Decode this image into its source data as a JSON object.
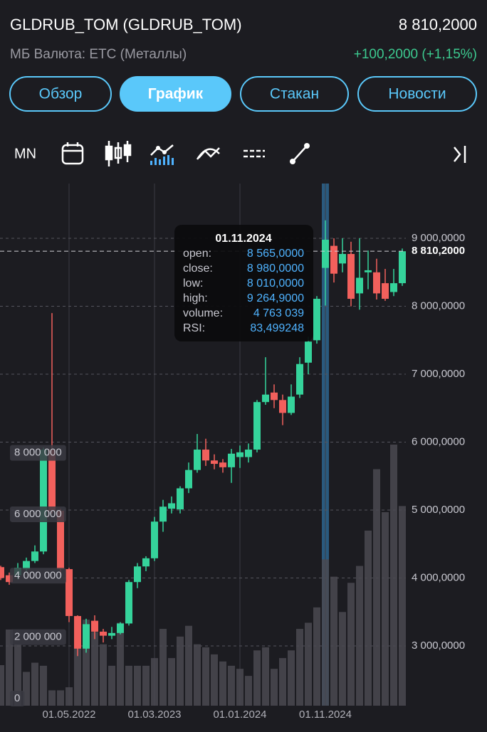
{
  "header": {
    "title": "GLDRUB_TOM (GLDRUB_TOM)",
    "price": "8 810,2000",
    "subtitle": "МБ Валюта: ETC (Металлы)",
    "change": "+100,2000 (+1,15%)"
  },
  "tabs": [
    "Обзор",
    "График",
    "Стакан",
    "Новости"
  ],
  "active_tab": "График",
  "toolbar": {
    "period": "MN"
  },
  "chart_data": {
    "type": "candlestick",
    "categories": [
      null,
      null,
      null,
      null,
      null,
      null,
      null,
      null,
      "01.05.2022",
      null,
      null,
      null,
      null,
      null,
      null,
      null,
      null,
      null,
      "01.03.2023",
      null,
      null,
      null,
      null,
      null,
      null,
      null,
      null,
      null,
      "01.01.2024",
      null,
      null,
      null,
      null,
      null,
      null,
      null,
      null,
      null,
      "01.11.2024",
      null,
      null,
      null,
      null,
      null,
      null,
      null,
      null,
      null
    ],
    "open": [
      4160000,
      4040000,
      4040000,
      4130000,
      4250000,
      4390000,
      5890000,
      4990000,
      4130000,
      3440000,
      2960000,
      3370000,
      3210000,
      3150000,
      3190000,
      3330000,
      3940000,
      4170000,
      4290000,
      4830000,
      5020000,
      5010000,
      5320000,
      5590000,
      5890000,
      5730000,
      5700000,
      5630000,
      5780000,
      5780000,
      5890000,
      6590000,
      6730000,
      6620000,
      6430000,
      6700000,
      7170000,
      7500000,
      8565000,
      8890000,
      8630000,
      8770000,
      8190000,
      8500000,
      8500000,
      8340000,
      8210000,
      8340000
    ],
    "high": [
      4180000,
      4080000,
      4220000,
      4300000,
      4480000,
      5920000,
      7900000,
      5020000,
      4150000,
      3450000,
      3400000,
      3450000,
      3250000,
      3280000,
      3350000,
      3970000,
      4220000,
      4320000,
      4900000,
      5150000,
      5200000,
      5350000,
      5700000,
      6120000,
      6050000,
      5820000,
      5750000,
      5900000,
      5950000,
      5980000,
      6620000,
      7250000,
      6850000,
      6700000,
      6850000,
      7250000,
      7550000,
      8150000,
      9264900,
      9000000,
      9000000,
      8950000,
      9000000,
      8820000,
      8700000,
      8550000,
      8550000,
      8850000
    ],
    "low": [
      3970000,
      3900000,
      3980000,
      4080000,
      4220000,
      4350000,
      4950000,
      4050000,
      3350000,
      2850000,
      2900000,
      3100000,
      3050000,
      3100000,
      3170000,
      3300000,
      3850000,
      4100000,
      4250000,
      4680000,
      4950000,
      4950000,
      5250000,
      5550000,
      5650000,
      5600000,
      5550000,
      5400000,
      5620000,
      5700000,
      5850000,
      6550000,
      6500000,
      6250000,
      6400000,
      6650000,
      7000000,
      7450000,
      8010000,
      8350000,
      8500000,
      8000000,
      7950000,
      8250000,
      8100000,
      8080000,
      8150000,
      8300000
    ],
    "close": [
      4000000,
      3940000,
      4150000,
      4250000,
      4390000,
      5890000,
      4990000,
      4130000,
      3440000,
      2960000,
      3320000,
      3210000,
      3150000,
      3190000,
      3330000,
      3940000,
      4170000,
      4290000,
      4830000,
      5050000,
      5100000,
      5320000,
      5590000,
      5890000,
      5730000,
      5680000,
      5630000,
      5830000,
      5850000,
      5890000,
      6590000,
      6700000,
      6620000,
      6430000,
      6670000,
      7150000,
      7480000,
      8110000,
      8980000,
      8480000,
      8770000,
      8110000,
      8420000,
      8530000,
      8190000,
      8110000,
      8340000,
      8810200
    ],
    "volume": [
      1320000,
      2480000,
      2000000,
      1100000,
      1400000,
      1300000,
      500000,
      500000,
      600000,
      2500000,
      2800000,
      2400000,
      2000000,
      1300000,
      2700000,
      1300000,
      1300000,
      1300000,
      1550000,
      2500000,
      1550000,
      2250000,
      2600000,
      2000000,
      1900000,
      1670000,
      1440000,
      1300000,
      1200000,
      970000,
      1800000,
      1900000,
      1200000,
      1550000,
      1800000,
      2500000,
      2700000,
      3200000,
      4763039,
      4200000,
      3050000,
      4000000,
      4550000,
      5700000,
      7700000,
      6300000,
      8500000,
      6500000
    ],
    "up_color": "#35d39b",
    "down_color": "#f2605c",
    "volume_color": "#4a4950",
    "ylim": [
      2120000,
      9807000
    ],
    "yticks": [
      {
        "value": 3000000,
        "label": "3 000,0000"
      },
      {
        "value": 4000000,
        "label": "4 000,0000"
      },
      {
        "value": 5000000,
        "label": "5 000,0000"
      },
      {
        "value": 6000000,
        "label": "6 000,0000"
      },
      {
        "value": 7000000,
        "label": "7 000,0000"
      },
      {
        "value": 8000000,
        "label": "8 000,0000"
      },
      {
        "value": 9000000,
        "label": "9 000,0000"
      }
    ],
    "y2lim": [
      0,
      17000000
    ],
    "y2ticks": [
      0,
      {
        "value": 2000000,
        "label": "2 000 000"
      },
      {
        "value": 4000000,
        "label": "4 000 000"
      },
      {
        "value": 6000000,
        "label": "6 000 000"
      },
      {
        "value": 8000000,
        "label": "8 000 000"
      }
    ],
    "last": {
      "value": 8810200,
      "label": "8 810,2000"
    },
    "grid": true,
    "tooltip": {
      "date": "01.11.2024",
      "rows": [
        {
          "label": "open:",
          "value": "8 565,0000"
        },
        {
          "label": "close:",
          "value": "8 980,0000"
        },
        {
          "label": "low:",
          "value": "8 010,0000"
        },
        {
          "label": "high:",
          "value": "9 264,9000"
        },
        {
          "label": "volume:",
          "value": "4 763 039"
        },
        {
          "label": "RSI:",
          "value": "83,499248"
        }
      ]
    }
  }
}
